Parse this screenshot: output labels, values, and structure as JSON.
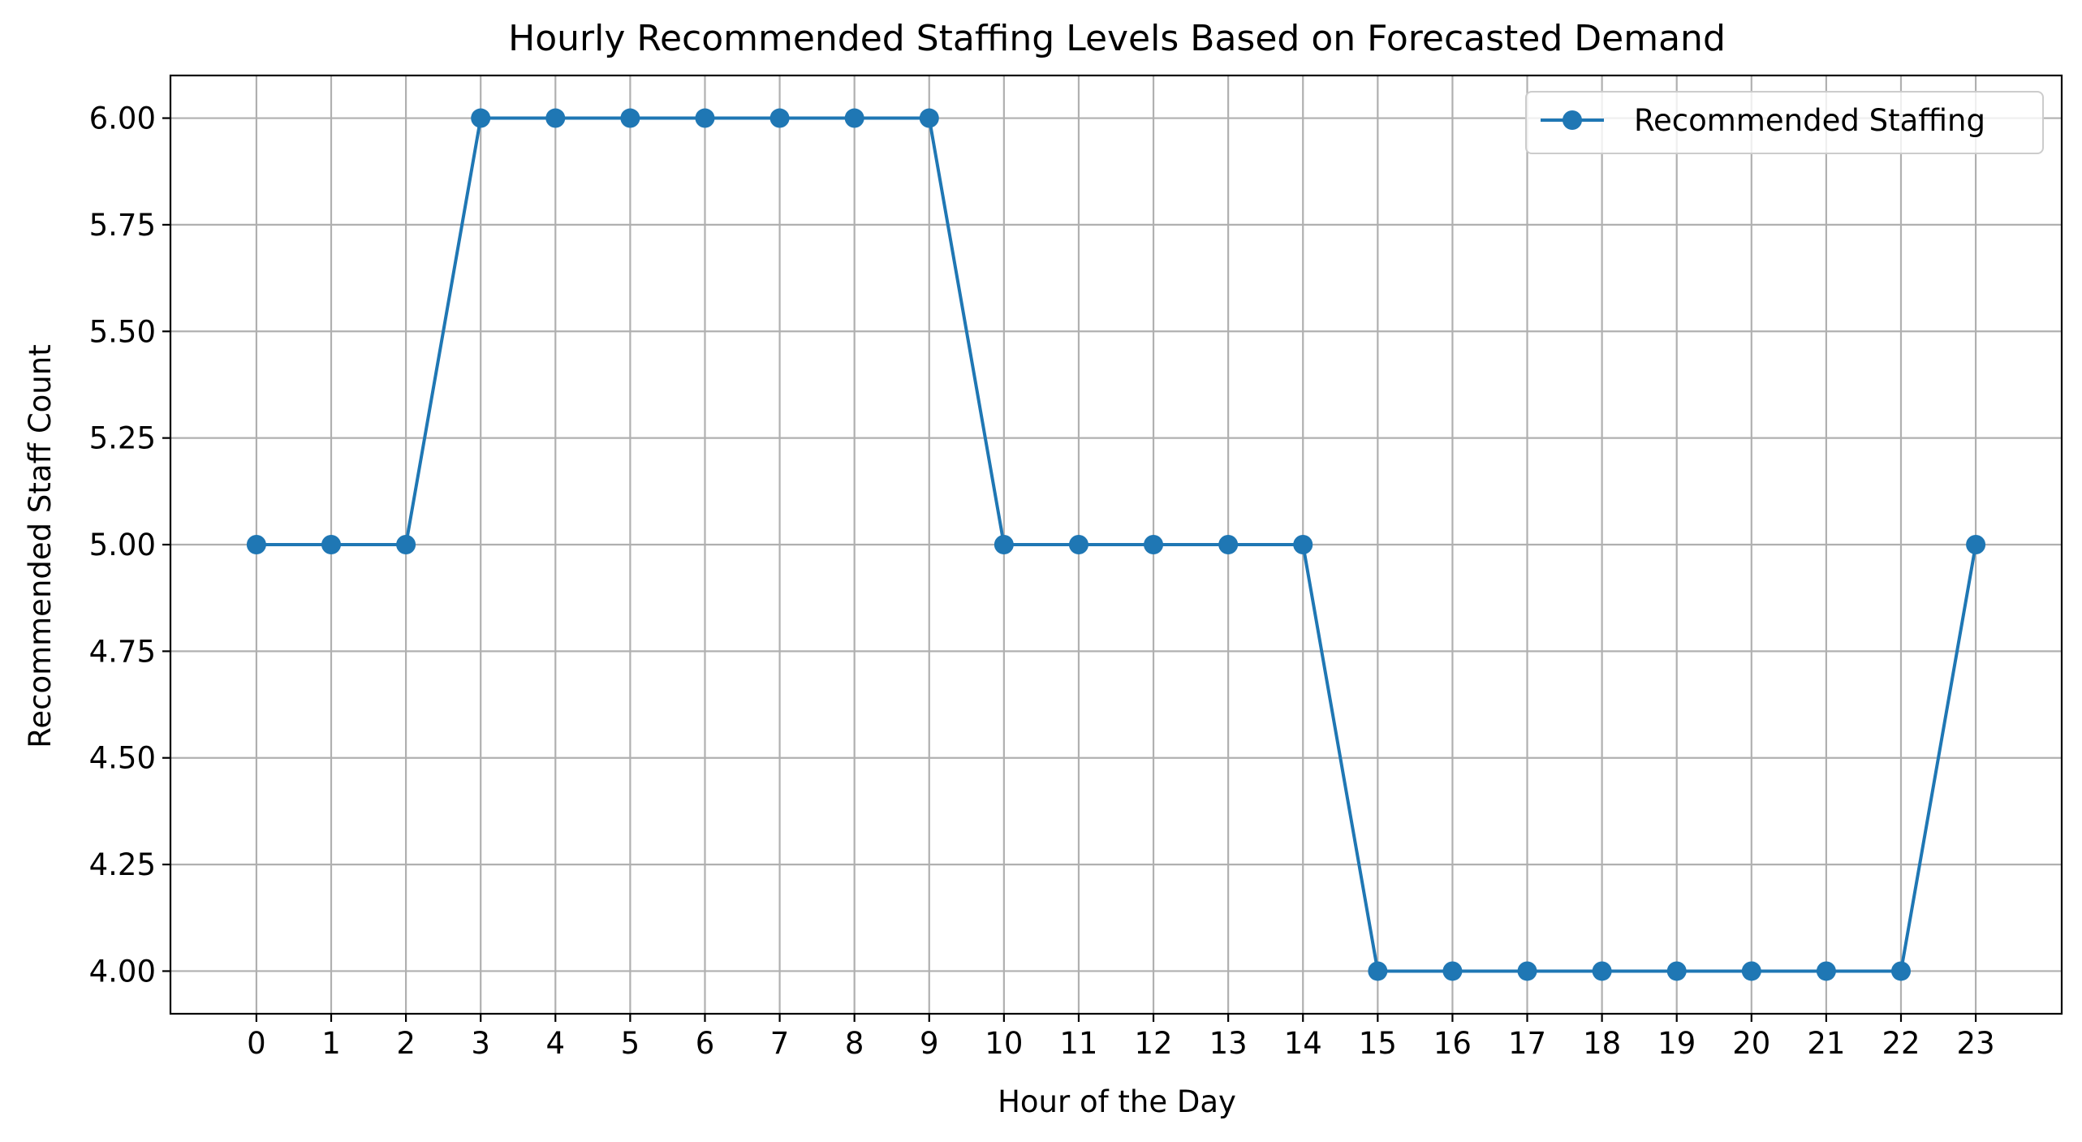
{
  "chart_data": {
    "type": "line",
    "title": "Hourly Recommended Staffing Levels Based on Forecasted Demand",
    "xlabel": "Hour of the Day",
    "ylabel": "Recommended Staff Count",
    "x": [
      0,
      1,
      2,
      3,
      4,
      5,
      6,
      7,
      8,
      9,
      10,
      11,
      12,
      13,
      14,
      15,
      16,
      17,
      18,
      19,
      20,
      21,
      22,
      23
    ],
    "x_tick_labels": [
      "0",
      "1",
      "2",
      "3",
      "4",
      "5",
      "6",
      "7",
      "8",
      "9",
      "10",
      "11",
      "12",
      "13",
      "14",
      "15",
      "16",
      "17",
      "18",
      "19",
      "20",
      "21",
      "22",
      "23"
    ],
    "series": [
      {
        "name": "Recommended Staffing",
        "values": [
          5,
          5,
          5,
          6,
          6,
          6,
          6,
          6,
          6,
          6,
          5,
          5,
          5,
          5,
          5,
          4,
          4,
          4,
          4,
          4,
          4,
          4,
          4,
          5
        ],
        "color": "#1f77b4",
        "marker": "circle"
      }
    ],
    "y_ticks": [
      4.0,
      4.25,
      4.5,
      4.75,
      5.0,
      5.25,
      5.5,
      5.75,
      6.0
    ],
    "y_tick_labels": [
      "4.00",
      "4.25",
      "4.50",
      "4.75",
      "5.00",
      "5.25",
      "5.50",
      "5.75",
      "6.00"
    ],
    "xlim": [
      -1.15,
      24.15
    ],
    "ylim": [
      3.9,
      6.1
    ],
    "grid": true,
    "legend_position": "top-right"
  }
}
